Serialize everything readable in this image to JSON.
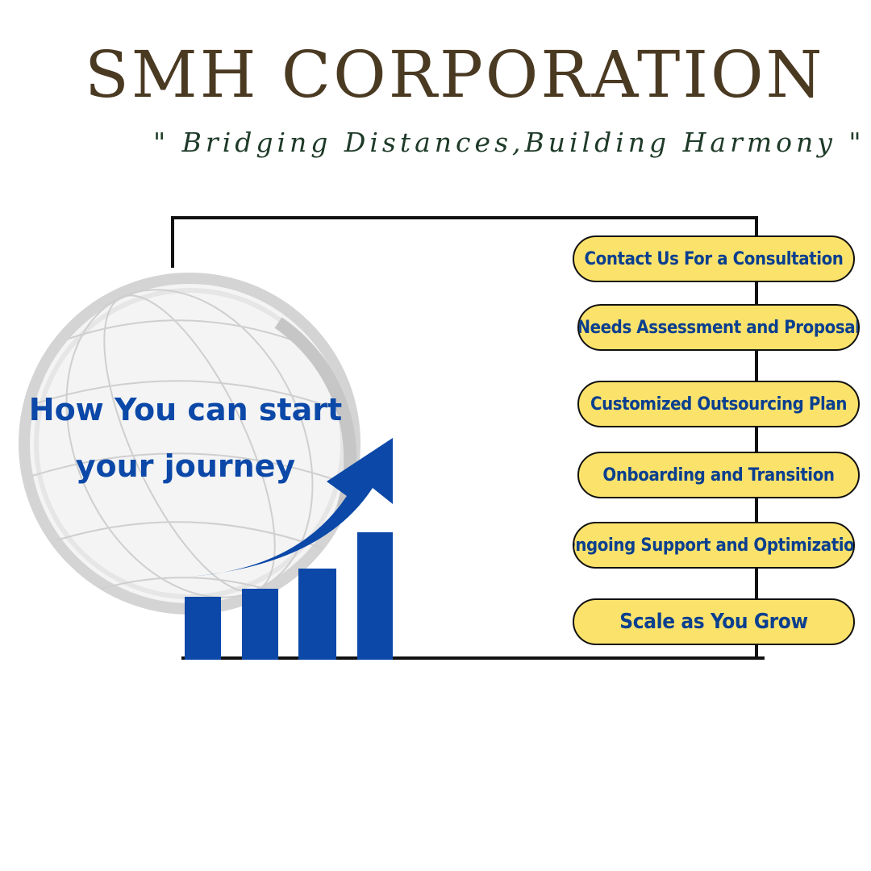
{
  "header": {
    "title": "SMH CORPORATION",
    "tagline": "\" Bridging Distances,Building Harmony \""
  },
  "hero": {
    "line1": "How You can start",
    "line2": "your journey"
  },
  "steps": [
    {
      "label": "Contact Us For a Consultation"
    },
    {
      "label": "Needs Assessment and Proposal"
    },
    {
      "label": "Customized Outsourcing Plan"
    },
    {
      "label": "Onboarding and Transition"
    },
    {
      "label": "Ongoing Support and Optimization"
    },
    {
      "label": "Scale as You Grow"
    }
  ],
  "colors": {
    "title": "#4a3a22",
    "tagline": "#1e3a28",
    "accent_blue": "#0b48a8",
    "pill_fill": "#fbe26b",
    "globe": "#d9d9d9"
  },
  "icons": [
    "globe-icon",
    "growth-chart-icon",
    "up-arrow-icon"
  ]
}
